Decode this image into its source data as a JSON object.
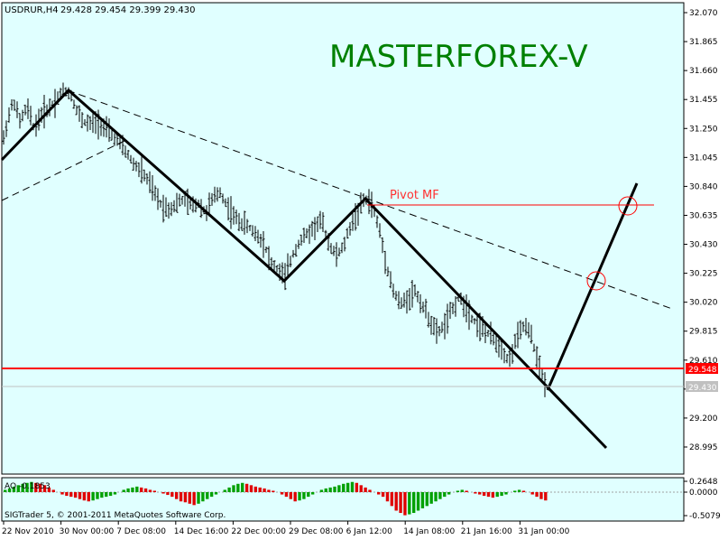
{
  "header": {
    "symbol": "USDRUR,H4",
    "ohlc": "29.428 29.454 29.399 29.430",
    "watermark": "MASTERFOREX-V"
  },
  "annotations": {
    "pivot_label": "Pivot MF",
    "support_price_tag": "29.548",
    "current_price_tag": "29.430"
  },
  "indicator": {
    "label": "AO -0.1853",
    "axis_ticks": [
      "0.2648",
      "0.0000",
      "-0.5079"
    ]
  },
  "footer": {
    "copyright": "SIGTrader 5, © 2001-2011 MetaQuotes Software Corp."
  },
  "colors": {
    "plot_bg": "#e0ffff",
    "support_line": "#ff0000",
    "pivot_line": "#ff0000",
    "watermark": "#008000",
    "ao_up": "#00a000",
    "ao_down": "#e00000"
  },
  "chart_data": {
    "type": "bar",
    "subtype": "ohlc",
    "yaxis_ticks": [
      "32.070",
      "31.865",
      "31.660",
      "31.455",
      "31.250",
      "31.045",
      "30.840",
      "30.635",
      "30.430",
      "30.225",
      "30.020",
      "29.815",
      "29.610",
      "29.405",
      "29.200",
      "28.995"
    ],
    "xaxis_ticks": [
      "22 Nov 2010",
      "30 Nov 00:00",
      "7 Dec 08:00",
      "14 Dec 16:00",
      "22 Dec 00:00",
      "29 Dec 08:00",
      "6 Jan 12:00",
      "14 Jan 08:00",
      "21 Jan 16:00",
      "31 Jan 00:00"
    ],
    "ylim": [
      28.85,
      32.14
    ],
    "support_level": 29.548,
    "pivot_level": 30.72,
    "current_price": 29.43,
    "price_path": [
      [
        0,
        31.05
      ],
      [
        8,
        31.3
      ],
      [
        15,
        31.45
      ],
      [
        22,
        31.3
      ],
      [
        30,
        31.4
      ],
      [
        38,
        31.25
      ],
      [
        46,
        31.35
      ],
      [
        55,
        31.4
      ],
      [
        62,
        31.45
      ],
      [
        70,
        31.52
      ],
      [
        78,
        31.5
      ],
      [
        85,
        31.38
      ],
      [
        92,
        31.3
      ],
      [
        100,
        31.28
      ],
      [
        108,
        31.3
      ],
      [
        116,
        31.25
      ],
      [
        124,
        31.2
      ],
      [
        132,
        31.15
      ],
      [
        140,
        31.08
      ],
      [
        148,
        31.0
      ],
      [
        156,
        30.95
      ],
      [
        164,
        30.88
      ],
      [
        172,
        30.78
      ],
      [
        180,
        30.7
      ],
      [
        188,
        30.68
      ],
      [
        196,
        30.72
      ],
      [
        204,
        30.75
      ],
      [
        212,
        30.7
      ],
      [
        220,
        30.72
      ],
      [
        228,
        30.65
      ],
      [
        236,
        30.75
      ],
      [
        244,
        30.8
      ],
      [
        252,
        30.7
      ],
      [
        260,
        30.62
      ],
      [
        268,
        30.58
      ],
      [
        276,
        30.55
      ],
      [
        284,
        30.5
      ],
      [
        292,
        30.45
      ],
      [
        300,
        30.3
      ],
      [
        308,
        30.25
      ],
      [
        316,
        30.2
      ],
      [
        324,
        30.35
      ],
      [
        332,
        30.45
      ],
      [
        340,
        30.5
      ],
      [
        348,
        30.55
      ],
      [
        356,
        30.6
      ],
      [
        364,
        30.45
      ],
      [
        372,
        30.35
      ],
      [
        380,
        30.4
      ],
      [
        388,
        30.55
      ],
      [
        396,
        30.65
      ],
      [
        404,
        30.75
      ],
      [
        412,
        30.72
      ],
      [
        420,
        30.55
      ],
      [
        428,
        30.3
      ],
      [
        436,
        30.1
      ],
      [
        444,
        30.0
      ],
      [
        452,
        30.05
      ],
      [
        460,
        30.1
      ],
      [
        468,
        30.0
      ],
      [
        476,
        29.9
      ],
      [
        484,
        29.8
      ],
      [
        492,
        29.85
      ],
      [
        500,
        29.95
      ],
      [
        508,
        30.05
      ],
      [
        516,
        30.0
      ],
      [
        524,
        29.9
      ],
      [
        532,
        29.85
      ],
      [
        540,
        29.8
      ],
      [
        548,
        29.75
      ],
      [
        556,
        29.7
      ],
      [
        564,
        29.6
      ],
      [
        572,
        29.75
      ],
      [
        580,
        29.85
      ],
      [
        588,
        29.8
      ],
      [
        596,
        29.6
      ],
      [
        604,
        29.45
      ],
      [
        608,
        29.43
      ]
    ],
    "ao_values": [
      0.05,
      0.08,
      0.12,
      0.15,
      0.18,
      0.2,
      0.22,
      0.2,
      0.18,
      0.15,
      0.1,
      0.05,
      0.0,
      -0.05,
      -0.08,
      -0.1,
      -0.12,
      -0.15,
      -0.18,
      -0.2,
      -0.18,
      -0.15,
      -0.12,
      -0.1,
      -0.08,
      -0.05,
      0.0,
      0.05,
      0.08,
      0.1,
      0.12,
      0.1,
      0.08,
      0.05,
      0.03,
      0.0,
      -0.03,
      -0.06,
      -0.1,
      -0.15,
      -0.2,
      -0.22,
      -0.25,
      -0.28,
      -0.25,
      -0.2,
      -0.15,
      -0.1,
      -0.05,
      0.0,
      0.05,
      0.1,
      0.15,
      0.18,
      0.2,
      0.18,
      0.15,
      0.12,
      0.1,
      0.08,
      0.05,
      0.03,
      0.0,
      -0.05,
      -0.1,
      -0.15,
      -0.2,
      -0.18,
      -0.15,
      -0.1,
      -0.05,
      0.0,
      0.05,
      0.08,
      0.1,
      0.12,
      0.15,
      0.18,
      0.2,
      0.22,
      0.2,
      0.15,
      0.1,
      0.05,
      0.0,
      -0.05,
      -0.1,
      -0.2,
      -0.3,
      -0.4,
      -0.45,
      -0.5,
      -0.48,
      -0.45,
      -0.4,
      -0.35,
      -0.3,
      -0.25,
      -0.2,
      -0.15,
      -0.1,
      -0.05,
      0.0,
      0.03,
      0.05,
      0.03,
      0.0,
      -0.03,
      -0.05,
      -0.08,
      -0.1,
      -0.12,
      -0.1,
      -0.08,
      -0.05,
      0.0,
      0.03,
      0.05,
      0.03,
      0.0,
      -0.05,
      -0.1,
      -0.15,
      -0.18
    ]
  }
}
